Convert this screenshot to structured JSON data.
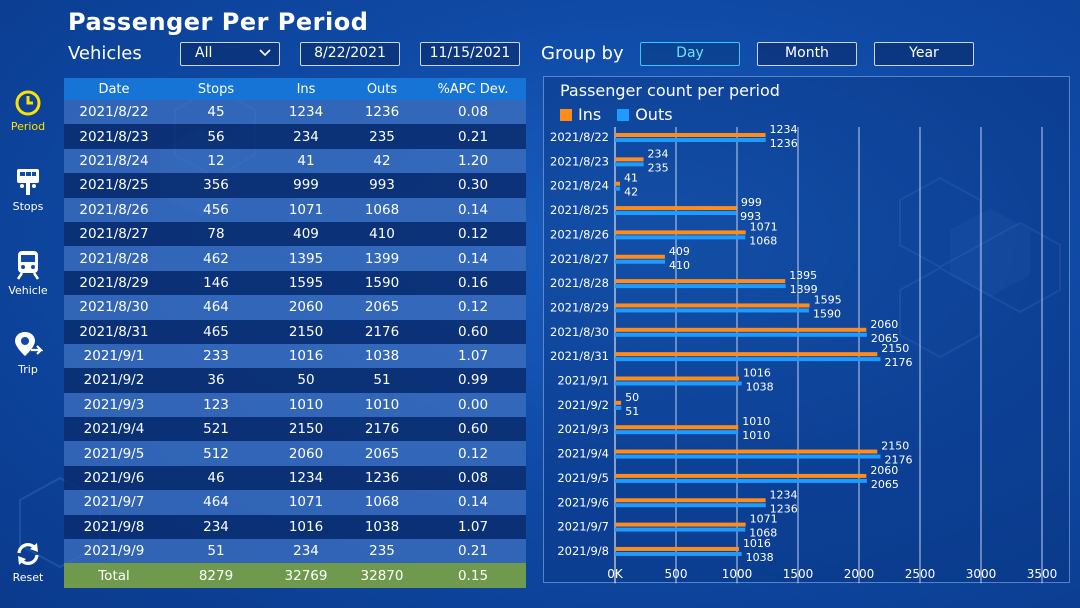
{
  "title": "Passenger Per Period",
  "filters": {
    "vehicles_label": "Vehicles",
    "vehicles_value": "All",
    "start_date": "8/22/2021",
    "end_date": "11/15/2021",
    "group_by_label": "Group by",
    "groups": [
      "Day",
      "Month",
      "Year"
    ],
    "active_group": "Day"
  },
  "sidebar": {
    "items": [
      {
        "label": "Period",
        "icon": "clock-icon",
        "active": true
      },
      {
        "label": "Stops",
        "icon": "bus-stop-icon",
        "active": false
      },
      {
        "label": "Vehicle",
        "icon": "train-icon",
        "active": false
      },
      {
        "label": "Trip",
        "icon": "location-pin-icon",
        "active": false
      }
    ],
    "reset_label": "Reset"
  },
  "table": {
    "headers": [
      "Date",
      "Stops",
      "Ins",
      "Outs",
      "%APC Dev."
    ],
    "rows": [
      [
        "2021/8/22",
        "45",
        "1234",
        "1236",
        "0.08"
      ],
      [
        "2021/8/23",
        "56",
        "234",
        "235",
        "0.21"
      ],
      [
        "2021/8/24",
        "12",
        "41",
        "42",
        "1.20"
      ],
      [
        "2021/8/25",
        "356",
        "999",
        "993",
        "0.30"
      ],
      [
        "2021/8/26",
        "456",
        "1071",
        "1068",
        "0.14"
      ],
      [
        "2021/8/27",
        "78",
        "409",
        "410",
        "0.12"
      ],
      [
        "2021/8/28",
        "462",
        "1395",
        "1399",
        "0.14"
      ],
      [
        "2021/8/29",
        "146",
        "1595",
        "1590",
        "0.16"
      ],
      [
        "2021/8/30",
        "464",
        "2060",
        "2065",
        "0.12"
      ],
      [
        "2021/8/31",
        "465",
        "2150",
        "2176",
        "0.60"
      ],
      [
        "2021/9/1",
        "233",
        "1016",
        "1038",
        "1.07"
      ],
      [
        "2021/9/2",
        "36",
        "50",
        "51",
        "0.99"
      ],
      [
        "2021/9/3",
        "123",
        "1010",
        "1010",
        "0.00"
      ],
      [
        "2021/9/4",
        "521",
        "2150",
        "2176",
        "0.60"
      ],
      [
        "2021/9/5",
        "512",
        "2060",
        "2065",
        "0.12"
      ],
      [
        "2021/9/6",
        "46",
        "1234",
        "1236",
        "0.08"
      ],
      [
        "2021/9/7",
        "464",
        "1071",
        "1068",
        "0.14"
      ],
      [
        "2021/9/8",
        "234",
        "1016",
        "1038",
        "1.07"
      ],
      [
        "2021/9/9",
        "51",
        "234",
        "235",
        "0.21"
      ]
    ],
    "total": [
      "Total",
      "8279",
      "32769",
      "32870",
      "0.15"
    ]
  },
  "chart_data": {
    "type": "bar",
    "orientation": "horizontal",
    "title": "Passenger count per period",
    "categories": [
      "2021/8/22",
      "2021/8/23",
      "2021/8/24",
      "2021/8/25",
      "2021/8/26",
      "2021/8/27",
      "2021/8/28",
      "2021/8/29",
      "2021/8/30",
      "2021/8/31",
      "2021/9/1",
      "2021/9/2",
      "2021/9/3",
      "2021/9/4",
      "2021/9/5",
      "2021/9/6",
      "2021/9/7",
      "2021/9/8"
    ],
    "series": [
      {
        "name": "Ins",
        "color": "#ff8c1a",
        "values": [
          1234,
          234,
          41,
          999,
          1071,
          409,
          1395,
          1595,
          2060,
          2150,
          1016,
          50,
          1010,
          2150,
          2060,
          1234,
          1071,
          1016
        ]
      },
      {
        "name": "Outs",
        "color": "#1e9bff",
        "values": [
          1236,
          235,
          42,
          993,
          1068,
          410,
          1399,
          1590,
          2065,
          2176,
          1038,
          51,
          1010,
          2176,
          2065,
          1236,
          1068,
          1038
        ]
      }
    ],
    "xlim": [
      0,
      3500
    ],
    "xticks": [
      0,
      500,
      1000,
      1500,
      2000,
      2500,
      3000,
      3500
    ],
    "xtick_labels": [
      "0K",
      "500",
      "1000",
      "1500",
      "2000",
      "2500",
      "3000",
      "3500"
    ],
    "grid": true,
    "legend_position": "top-left"
  }
}
